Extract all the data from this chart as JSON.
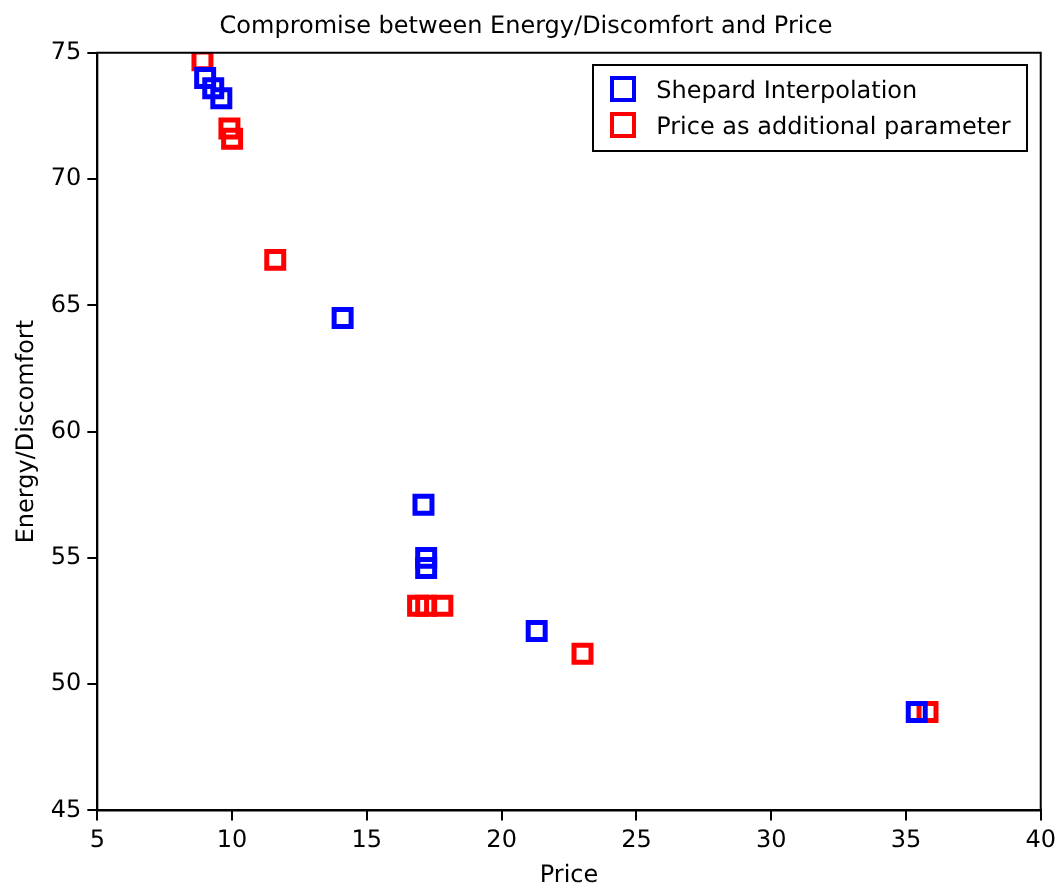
{
  "chart_data": {
    "type": "scatter",
    "title": "Compromise between Energy/Discomfort and Price",
    "xlabel": "Price",
    "ylabel": "Energy/Discomfort",
    "series": [
      {
        "name": "Shepard Interpolation",
        "color": "#0000ff",
        "x": [
          9.0,
          9.3,
          9.6,
          14.1,
          17.1,
          17.2,
          17.2,
          21.3,
          35.4
        ],
        "values": [
          74.0,
          73.6,
          73.2,
          64.5,
          57.1,
          55.0,
          54.6,
          52.1,
          48.9
        ]
      },
      {
        "name": "Price as additional parameter",
        "color": "#ff0000",
        "x": [
          8.9,
          9.9,
          10.0,
          11.6,
          16.9,
          17.2,
          17.8,
          23.0,
          35.8
        ],
        "values": [
          74.7,
          72.0,
          71.6,
          66.8,
          53.1,
          53.1,
          53.1,
          51.2,
          48.9
        ]
      }
    ],
    "xlim": [
      5,
      40
    ],
    "xticks": [
      5,
      10,
      15,
      20,
      25,
      30,
      35,
      40
    ],
    "ylim": [
      45,
      75
    ],
    "yticks": [
      45,
      50,
      55,
      60,
      65,
      70,
      75
    ],
    "marker": "square",
    "grid": false,
    "legend": "top right"
  }
}
